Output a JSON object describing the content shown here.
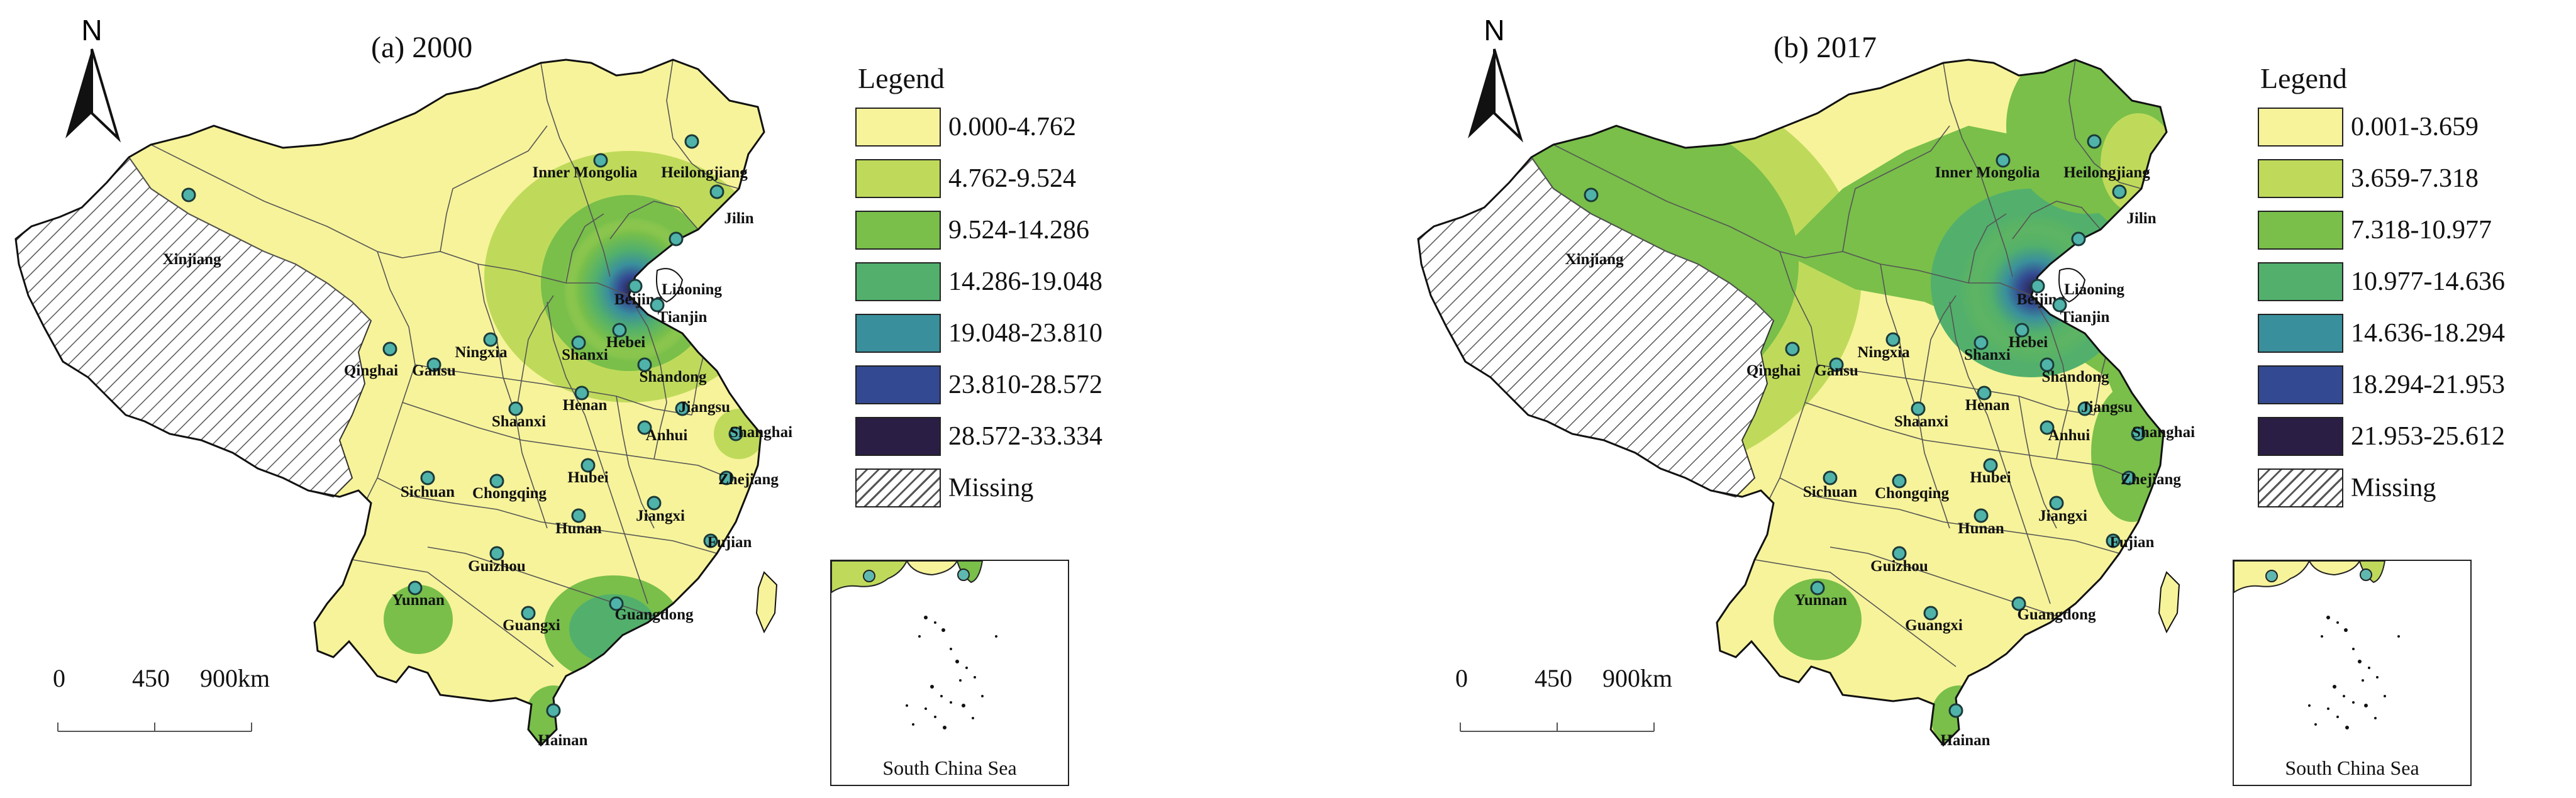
{
  "panels": [
    {
      "title": "(a) 2000",
      "north_label": "N",
      "legend": {
        "title": "Legend",
        "classes": [
          {
            "label": "0.000-4.762",
            "color": "#f7f39a"
          },
          {
            "label": "4.762-9.524",
            "color": "#bfda5a"
          },
          {
            "label": "9.524-14.286",
            "color": "#79bf4a"
          },
          {
            "label": "14.286-19.048",
            "color": "#52b06c"
          },
          {
            "label": "19.048-23.810",
            "color": "#3a8f9c"
          },
          {
            "label": "23.810-28.572",
            "color": "#334a92"
          },
          {
            "label": "28.572-33.334",
            "color": "#2b1e45"
          },
          {
            "label": "Missing",
            "color": "hatch"
          }
        ]
      },
      "scale": {
        "labels": [
          "0",
          "450",
          "900km"
        ]
      },
      "inset_title": "South China Sea",
      "provinces": [
        "Inner Mongolia",
        "Heilongjiang",
        "Xinjiang",
        "Jilin",
        "Liaoning",
        "Beijing",
        "Tianjin",
        "Hebei",
        "Ningxia",
        "Shanxi",
        "Qinghai",
        "Gansu",
        "Shandong",
        "Henan",
        "Shaanxi",
        "Jiangsu",
        "Anhui",
        "Shanghai",
        "Sichuan",
        "Hubei",
        "Chongqing",
        "Zhejiang",
        "Hunan",
        "Jiangxi",
        "Fujian",
        "Guizhou",
        "Yunnan",
        "Guangxi",
        "Guangdong",
        "Hainan"
      ]
    },
    {
      "title": "(b) 2017",
      "north_label": "N",
      "legend": {
        "title": "Legend",
        "classes": [
          {
            "label": "0.001-3.659",
            "color": "#f7f39a"
          },
          {
            "label": "3.659-7.318",
            "color": "#bfda5a"
          },
          {
            "label": "7.318-10.977",
            "color": "#79bf4a"
          },
          {
            "label": "10.977-14.636",
            "color": "#52b06c"
          },
          {
            "label": "14.636-18.294",
            "color": "#3a8f9c"
          },
          {
            "label": "18.294-21.953",
            "color": "#334a92"
          },
          {
            "label": "21.953-25.612",
            "color": "#2b1e45"
          },
          {
            "label": "Missing",
            "color": "hatch"
          }
        ]
      },
      "scale": {
        "labels": [
          "0",
          "450",
          "900km"
        ]
      },
      "inset_title": "South China Sea",
      "provinces": [
        "Inner Mongolia",
        "Heilongjiang",
        "Xinjiang",
        "Jilin",
        "Liaoning",
        "Beijing",
        "Tianjin",
        "Hebei",
        "Ningxia",
        "Shanxi",
        "Qinghai",
        "Gansu",
        "Shandong",
        "Henan",
        "Shaanxi",
        "Jiangsu",
        "Anhui",
        "Shanghai",
        "Sichuan",
        "Hubei",
        "Chongqing",
        "Zhejiang",
        "Hunan",
        "Jiangxi",
        "Fujian",
        "Guizhou",
        "Yunnan",
        "Guangxi",
        "Guangdong",
        "Hainan"
      ]
    }
  ]
}
